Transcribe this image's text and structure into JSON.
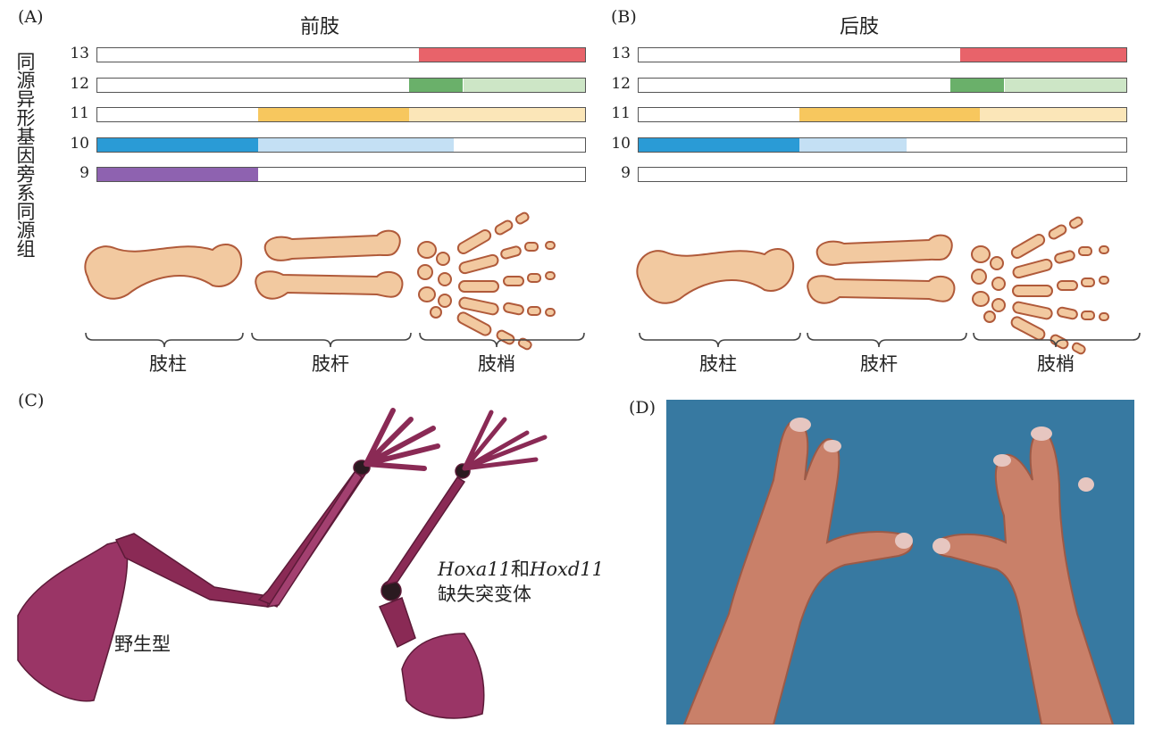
{
  "panel_a": {
    "letter": "(A)",
    "title": "前肢",
    "rows": [
      {
        "label": "13",
        "segments": [
          {
            "from": 0.66,
            "to": 1.0,
            "color": "#e8636a"
          }
        ]
      },
      {
        "label": "12",
        "segments": [
          {
            "from": 0.64,
            "to": 0.75,
            "color": "#6ab06a"
          },
          {
            "from": 0.75,
            "to": 1.0,
            "color": "#cde6c6"
          }
        ]
      },
      {
        "label": "11",
        "segments": [
          {
            "from": 0.33,
            "to": 0.64,
            "color": "#f7c75e"
          },
          {
            "from": 0.64,
            "to": 1.0,
            "color": "#fbe6b8"
          }
        ]
      },
      {
        "label": "10",
        "segments": [
          {
            "from": 0.0,
            "to": 0.33,
            "color": "#2a9bd6"
          },
          {
            "from": 0.33,
            "to": 0.73,
            "color": "#c4e0f4"
          }
        ]
      },
      {
        "label": "9",
        "segments": [
          {
            "from": 0.0,
            "to": 0.33,
            "color": "#8e62b0"
          }
        ]
      }
    ],
    "regions": [
      "肢柱",
      "肢杆",
      "肢梢"
    ]
  },
  "panel_b": {
    "letter": "(B)",
    "title": "后肢",
    "rows": [
      {
        "label": "13",
        "segments": [
          {
            "from": 0.66,
            "to": 1.0,
            "color": "#e8636a"
          }
        ]
      },
      {
        "label": "12",
        "segments": [
          {
            "from": 0.64,
            "to": 0.75,
            "color": "#6ab06a"
          },
          {
            "from": 0.75,
            "to": 1.0,
            "color": "#cde6c6"
          }
        ]
      },
      {
        "label": "11",
        "segments": [
          {
            "from": 0.33,
            "to": 0.7,
            "color": "#f7c75e"
          },
          {
            "from": 0.7,
            "to": 1.0,
            "color": "#fbe6b8"
          }
        ]
      },
      {
        "label": "10",
        "segments": [
          {
            "from": 0.0,
            "to": 0.33,
            "color": "#2a9bd6"
          },
          {
            "from": 0.33,
            "to": 0.55,
            "color": "#c4e0f4"
          }
        ]
      },
      {
        "label": "9",
        "segments": []
      }
    ],
    "regions": [
      "肢柱",
      "肢杆",
      "肢梢"
    ]
  },
  "side_label": {
    "line1": "同源异形基因",
    "line2": "旁系同源组"
  },
  "panel_c": {
    "letter": "(C)",
    "wild_type": "野生型",
    "mutant_gene1": "Hoxa11",
    "mutant_and": "和",
    "mutant_gene2": "Hoxd11",
    "mutant_line2": "缺失突变体"
  },
  "panel_d": {
    "letter": "(D)"
  },
  "colors": {
    "bone_fill": "#f2c9a0",
    "bone_stroke": "#b05a3a",
    "skeleton": "#8a2a55",
    "photo_bg": "#3d7fa6",
    "skin": "#c98069"
  }
}
